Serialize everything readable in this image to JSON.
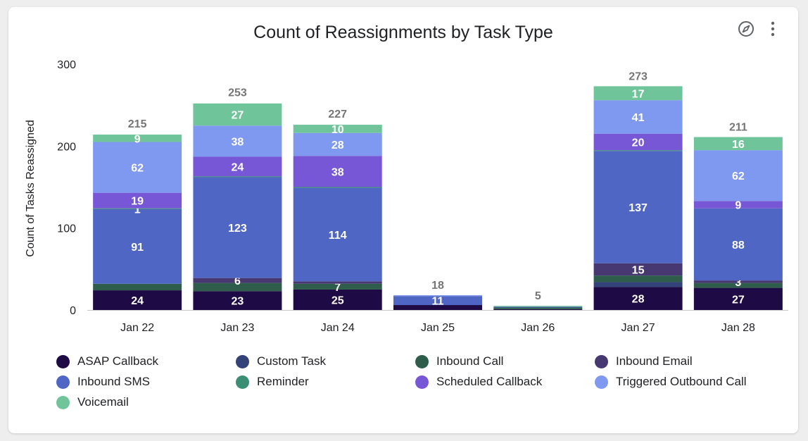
{
  "card": {
    "title": "Count of Reassignments by Task Type",
    "icons": [
      "explore-icon",
      "more-vert-icon"
    ]
  },
  "colors": {
    "axis_text": "#202124",
    "total_label": "#757575",
    "segment_label": "#ffffff"
  },
  "chart_data": {
    "type": "bar",
    "stacked": true,
    "title": "Count of Reassignments by Task Type",
    "xlabel": "",
    "ylabel": "Count of Tasks Reassigned",
    "ylim": [
      0,
      300
    ],
    "yticks": [
      0,
      100,
      200,
      300
    ],
    "grid": false,
    "legend_position": "bottom",
    "categories": [
      "Jan 22",
      "Jan 23",
      "Jan 24",
      "Jan 25",
      "Jan 26",
      "Jan 27",
      "Jan 28"
    ],
    "totals": [
      215,
      253,
      227,
      18,
      5,
      273,
      211
    ],
    "series": [
      {
        "name": "ASAP Callback",
        "color": "#1e0b45",
        "values": [
          24,
          23,
          25,
          6,
          1,
          28,
          27
        ],
        "labels": [
          "24",
          "23",
          "25",
          "",
          "",
          "28",
          "27"
        ]
      },
      {
        "name": "Custom Task",
        "color": "#34427a",
        "values": [
          0,
          0,
          0,
          0,
          0,
          6,
          0
        ],
        "labels": [
          "",
          "",
          "",
          "",
          "",
          "",
          ""
        ]
      },
      {
        "name": "Inbound Call",
        "color": "#2f5d4c",
        "values": [
          8,
          10,
          7,
          0,
          2,
          8,
          6
        ],
        "labels": [
          "",
          "",
          "7",
          "",
          "",
          "",
          ""
        ]
      },
      {
        "name": "Inbound Email",
        "color": "#473871",
        "values": [
          0,
          6,
          3,
          0,
          0,
          15,
          3
        ],
        "labels": [
          "",
          "6",
          "",
          "",
          "",
          "15",
          "3"
        ]
      },
      {
        "name": "Inbound SMS",
        "color": "#4f66c4",
        "values": [
          91,
          123,
          114,
          11,
          1,
          137,
          88
        ],
        "labels": [
          "91",
          "123",
          "114",
          "11",
          "",
          "137",
          "88"
        ]
      },
      {
        "name": "Reminder",
        "color": "#3a8e74",
        "values": [
          1,
          1,
          1,
          0,
          0,
          1,
          0
        ],
        "labels": [
          "1",
          "",
          "",
          "",
          "",
          "",
          ""
        ]
      },
      {
        "name": "Scheduled Callback",
        "color": "#7857d6",
        "values": [
          19,
          24,
          38,
          0,
          0,
          20,
          9
        ],
        "labels": [
          "19",
          "24",
          "38",
          "",
          "",
          "20",
          "9"
        ]
      },
      {
        "name": "Triggered Outbound Call",
        "color": "#7f98f0",
        "values": [
          62,
          38,
          28,
          1,
          0,
          41,
          62
        ],
        "labels": [
          "62",
          "38",
          "28",
          "",
          "",
          "41",
          "62"
        ]
      },
      {
        "name": "Voicemail",
        "color": "#6fc599",
        "values": [
          9,
          27,
          10,
          0,
          1,
          17,
          16
        ],
        "labels": [
          "9",
          "27",
          "10",
          "",
          "",
          "17",
          "16"
        ]
      }
    ]
  }
}
